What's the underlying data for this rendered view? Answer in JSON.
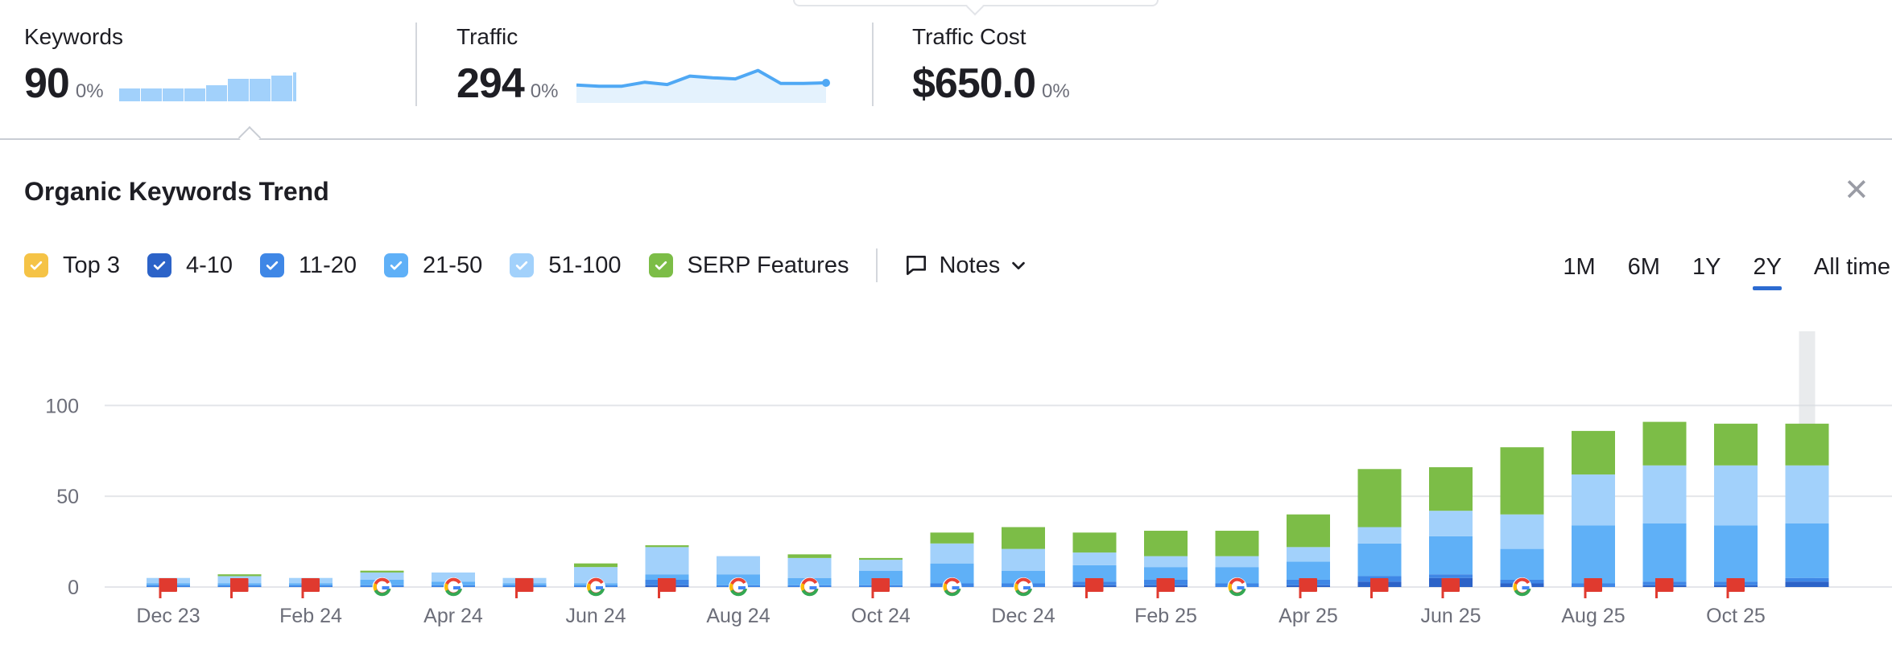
{
  "summary": {
    "keywords": {
      "label": "Keywords",
      "value": "90",
      "change": "0%",
      "spark": [
        4,
        4,
        4,
        4,
        5,
        7,
        7,
        8,
        9,
        10,
        10,
        10
      ]
    },
    "traffic": {
      "label": "Traffic",
      "value": "294",
      "change": "0%",
      "spark": [
        52,
        48,
        48,
        62,
        54,
        84,
        78,
        74,
        104,
        58,
        58,
        60
      ]
    },
    "traffic_cost": {
      "label": "Traffic Cost",
      "value": "$650.0",
      "change": "0%"
    }
  },
  "panel": {
    "title": "Organic Keywords Trend",
    "close_icon": "close-icon"
  },
  "legend": [
    {
      "label": "Top 3",
      "color": "#f5c346"
    },
    {
      "label": "4-10",
      "color": "#2c63c8"
    },
    {
      "label": "11-20",
      "color": "#3f87e6"
    },
    {
      "label": "21-50",
      "color": "#5fb0f7"
    },
    {
      "label": "51-100",
      "color": "#a2d1fb"
    },
    {
      "label": "SERP Features",
      "color": "#7cbd47"
    }
  ],
  "notes": {
    "label": "Notes"
  },
  "ranges": [
    {
      "label": "1M",
      "active": false
    },
    {
      "label": "6M",
      "active": false
    },
    {
      "label": "1Y",
      "active": false
    },
    {
      "label": "2Y",
      "active": true
    },
    {
      "label": "All time",
      "active": false
    }
  ],
  "chart_data": {
    "type": "bar",
    "stacked": true,
    "ylim": [
      0,
      140
    ],
    "yticks": [
      0,
      50,
      100
    ],
    "grid": true,
    "legend_position": "top-left",
    "xtick_labels": [
      "Dec 23",
      "Feb 24",
      "Apr 24",
      "Jun 24",
      "Aug 24",
      "Oct 24",
      "Dec 24",
      "Feb 25",
      "Apr 25",
      "Jun 25",
      "Aug 25",
      "Oct 25"
    ],
    "categories": [
      "Dec 23",
      "Jan 24",
      "Feb 24",
      "Mar 24",
      "Apr 24",
      "May 24",
      "Jun 24",
      "Jul 24",
      "Aug 24",
      "Sep 24",
      "Oct 24",
      "Nov 24",
      "Dec 24",
      "Jan 25",
      "Feb 25",
      "Mar 25",
      "Apr 25",
      "May 25",
      "Jun 25",
      "Jul 25",
      "Aug 25",
      "Sep 25",
      "Oct 25",
      "Nov 25"
    ],
    "series": [
      {
        "name": "Top 3",
        "values": [
          0,
          0,
          0,
          0,
          0,
          0,
          0,
          0,
          0,
          0,
          0,
          0,
          0,
          0,
          0,
          0,
          0,
          0,
          0,
          0,
          0,
          0,
          0,
          0
        ]
      },
      {
        "name": "4-10",
        "values": [
          0,
          0,
          0,
          0,
          0,
          0,
          0,
          1,
          0,
          0,
          0,
          0,
          0,
          1,
          1,
          0,
          1,
          3,
          5,
          2,
          0,
          1,
          1,
          3
        ]
      },
      {
        "name": "11-20",
        "values": [
          1,
          1,
          1,
          1,
          1,
          1,
          1,
          3,
          1,
          1,
          1,
          2,
          2,
          2,
          3,
          2,
          3,
          3,
          2,
          2,
          2,
          2,
          2,
          2
        ]
      },
      {
        "name": "21-50",
        "values": [
          1,
          1,
          1,
          3,
          2,
          1,
          1,
          3,
          6,
          4,
          8,
          11,
          7,
          9,
          7,
          9,
          10,
          18,
          21,
          17,
          32,
          32,
          31,
          30
        ]
      },
      {
        "name": "51-100",
        "values": [
          3,
          4,
          3,
          4,
          5,
          3,
          9,
          15,
          10,
          11,
          6,
          11,
          12,
          7,
          6,
          6,
          8,
          9,
          14,
          19,
          28,
          32,
          33,
          32
        ]
      },
      {
        "name": "SERP Features",
        "values": [
          0,
          1,
          0,
          1,
          0,
          0,
          2,
          1,
          0,
          2,
          1,
          6,
          12,
          11,
          14,
          14,
          18,
          32,
          24,
          37,
          24,
          24,
          23,
          23
        ]
      }
    ],
    "note_markers": [
      "flag",
      "flag",
      "flag",
      "google",
      "google",
      "flag",
      "google",
      "flag",
      "google",
      "google",
      "flag",
      "google",
      "google",
      "flag",
      "flag",
      "google",
      "flag",
      "flag",
      "flag",
      "google",
      "flag",
      "flag",
      "flag",
      ""
    ]
  }
}
